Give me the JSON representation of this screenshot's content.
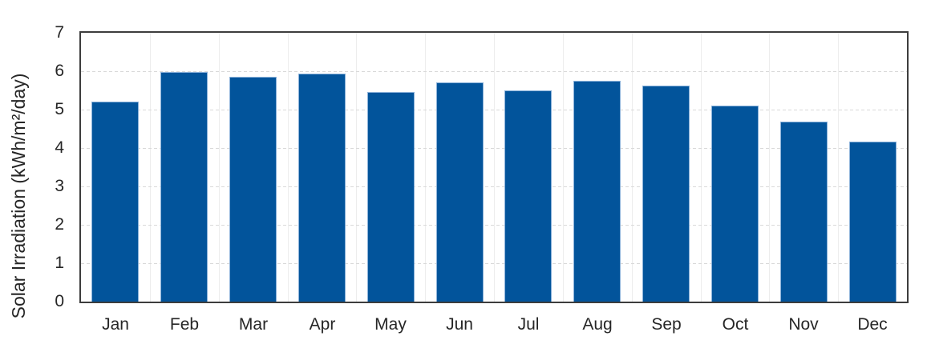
{
  "chart_data": {
    "type": "bar",
    "title": "",
    "categories": [
      "Jan",
      "Feb",
      "Mar",
      "Apr",
      "May",
      "Jun",
      "Jul",
      "Aug",
      "Sep",
      "Oct",
      "Nov",
      "Dec"
    ],
    "values": [
      5.2,
      5.98,
      5.86,
      5.93,
      5.46,
      5.71,
      5.51,
      5.76,
      5.62,
      5.1,
      4.68,
      4.16
    ],
    "series_name": "Solar Irradiation",
    "xlabel": "",
    "ylabel": "Solar Irradiation (kWh/m²/day)",
    "ylim": [
      0,
      7
    ],
    "yticks": [
      0,
      1,
      2,
      3,
      4,
      5,
      6,
      7
    ],
    "grid": {
      "horizontal": "dashed",
      "vertical": "light-solid-category-boundaries"
    },
    "legend": "none",
    "colors": {
      "bar_fill": "#02549b",
      "bar_border": "#8ab1d9",
      "hgrid": "#d9d9d9",
      "vgrid": "#ededed",
      "frame": "#3d3d3d",
      "text": "#262626",
      "background": "#ffffff"
    }
  }
}
